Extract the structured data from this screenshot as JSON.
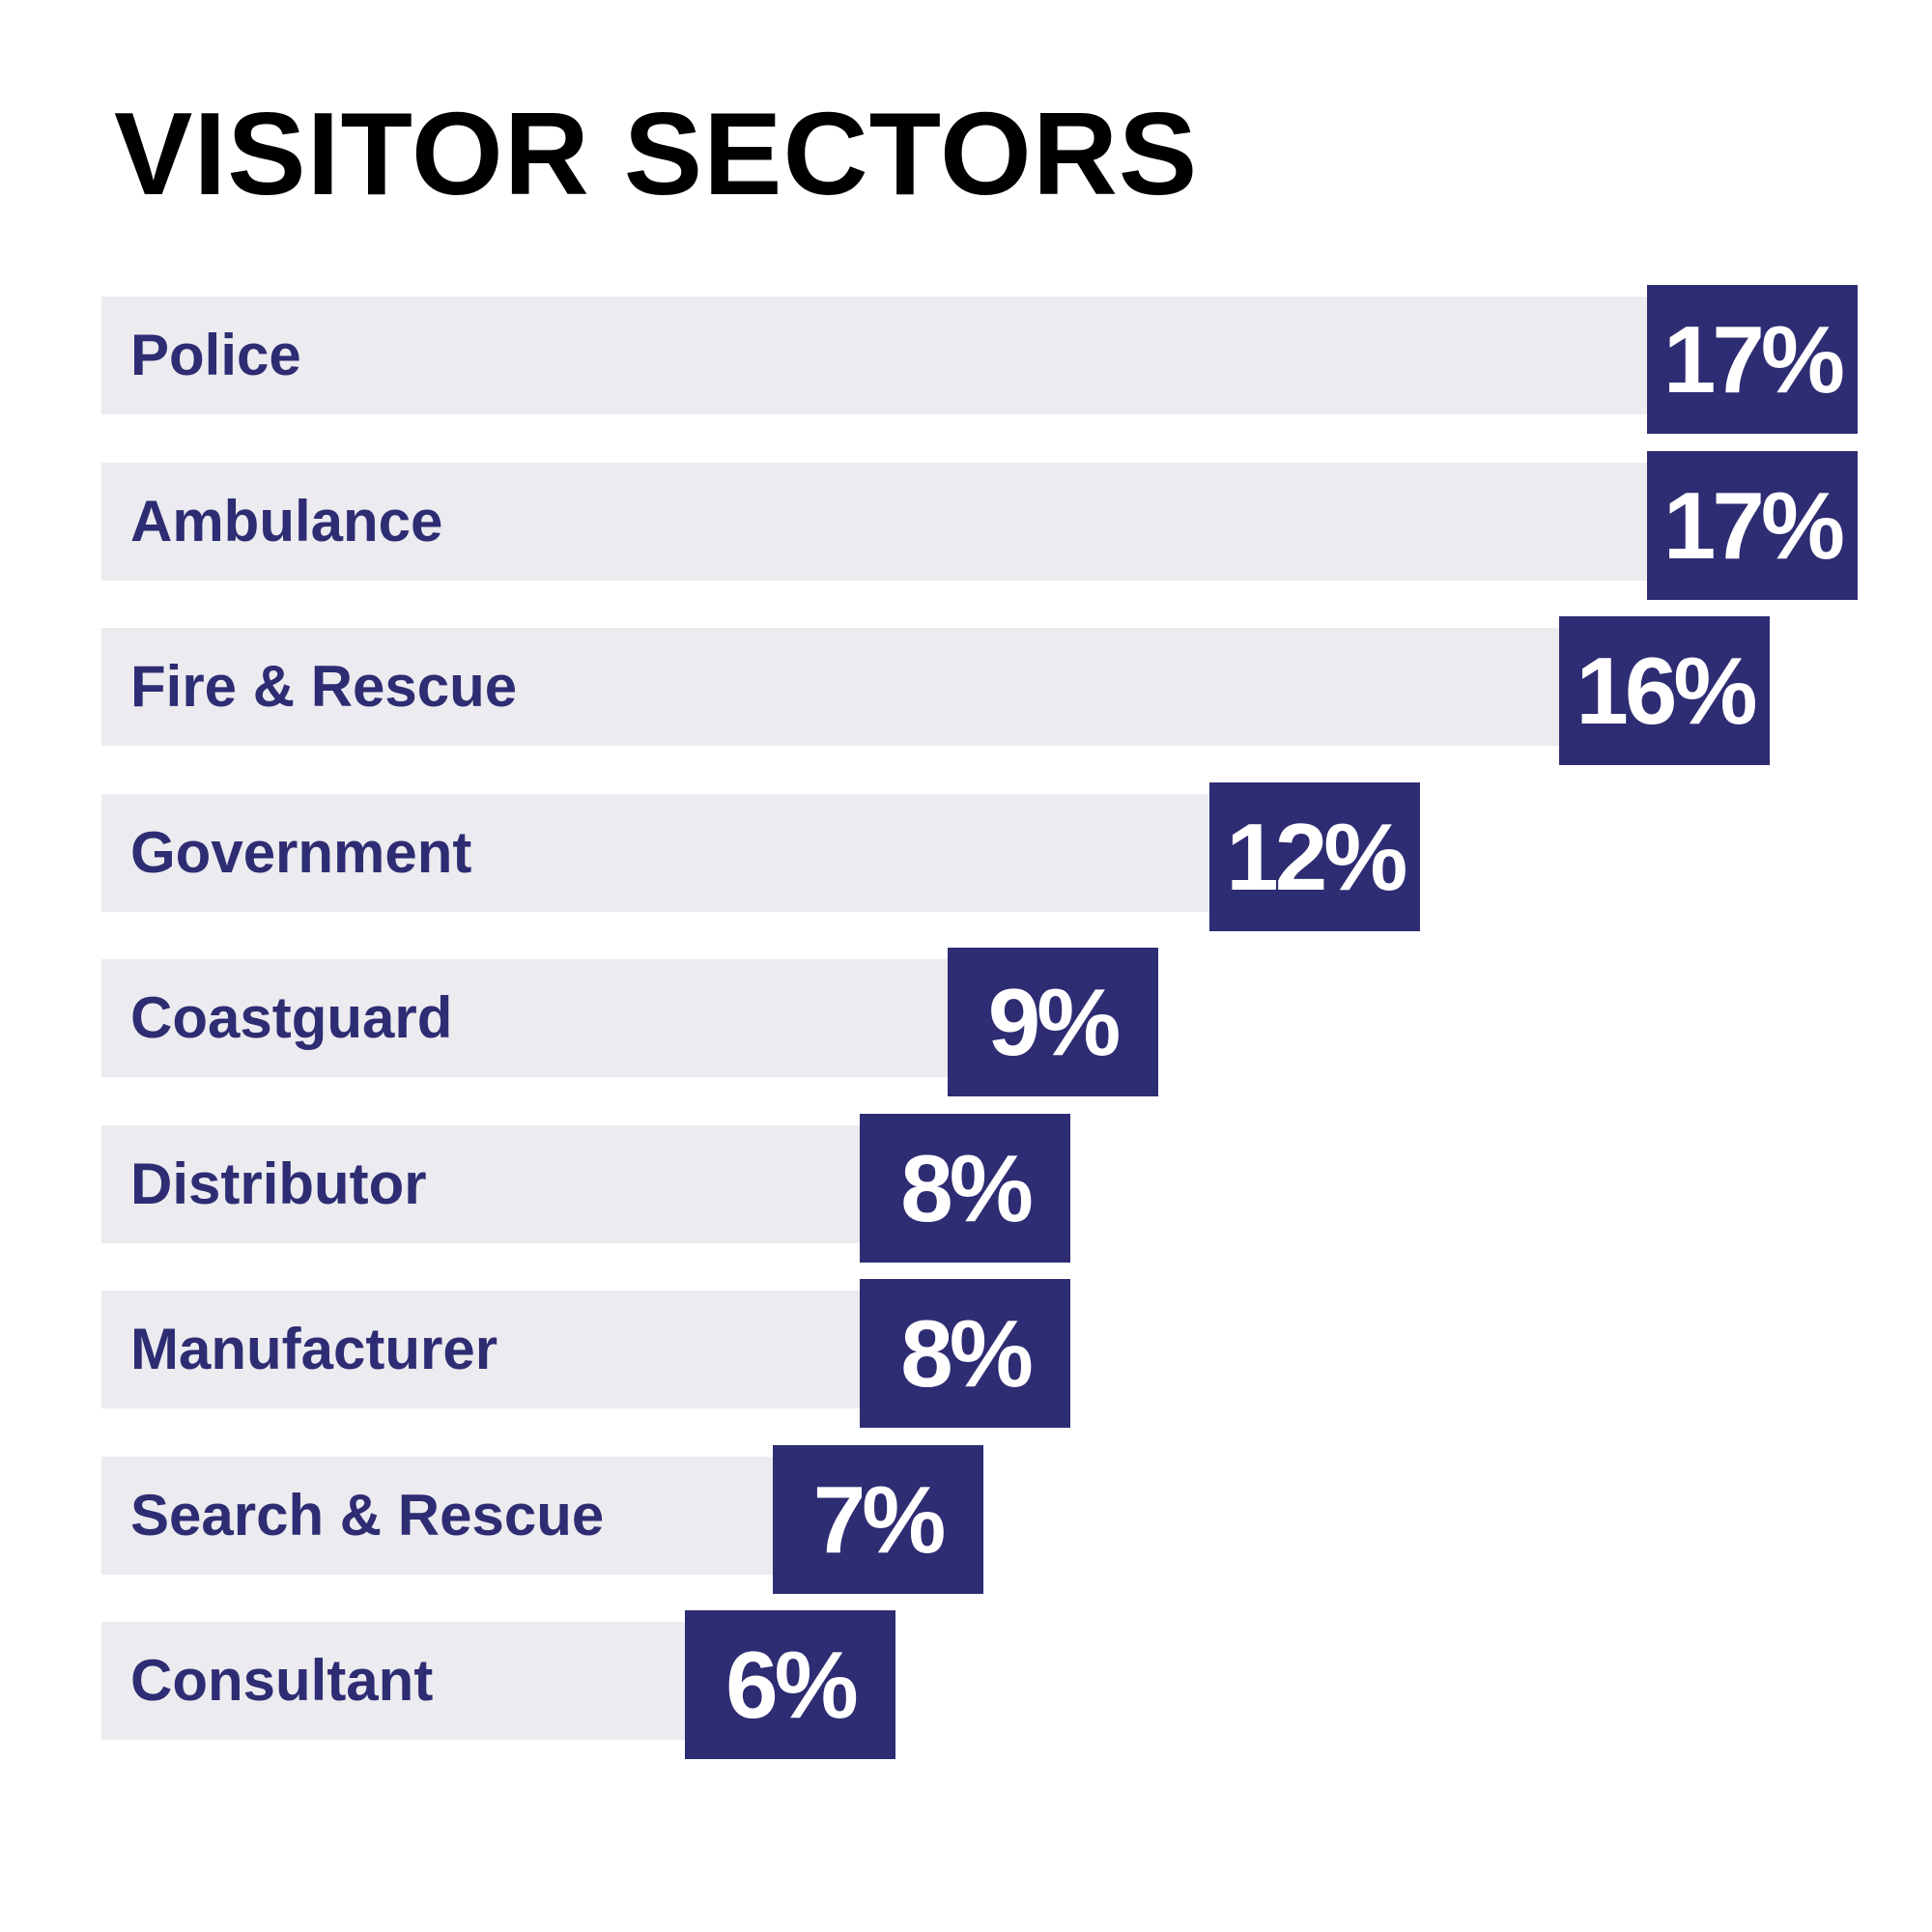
{
  "chart_data": {
    "type": "bar",
    "orientation": "horizontal",
    "title": "VISITOR SECTORS",
    "categories": [
      "Police",
      "Ambulance",
      "Fire & Rescue",
      "Government",
      "Coastguard",
      "Distributor",
      "Manufacturer",
      "Search & Rescue",
      "Consultant"
    ],
    "values": [
      17,
      17,
      16,
      12,
      9,
      8,
      8,
      7,
      6
    ],
    "value_labels": [
      "17%",
      "17%",
      "16%",
      "12%",
      "9%",
      "8%",
      "8%",
      "7%",
      "6%"
    ],
    "xlim": [
      0,
      17
    ],
    "grid": false,
    "legend": "none"
  },
  "colors": {
    "bar": "#2e2c72",
    "track": "#ebebf0",
    "label": "#2e2c72",
    "value_text": "#ffffff",
    "title": "#000000"
  }
}
